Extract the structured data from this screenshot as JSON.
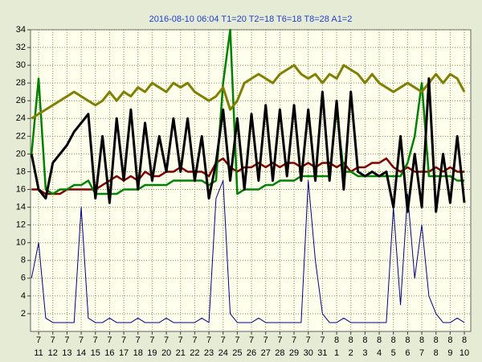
{
  "chart_data": {
    "type": "line",
    "title": "2016-08-10 06:04  T1=20 T2=18 T6=18 T8=28 A1=2",
    "x": [
      -0.5,
      0,
      0.5,
      1,
      1.5,
      2,
      2.5,
      3,
      3.5,
      4,
      4.5,
      5,
      5.5,
      6,
      6.5,
      7,
      7.5,
      8,
      8.5,
      9,
      9.5,
      10,
      10.5,
      11,
      11.5,
      12,
      12.5,
      13,
      13.5,
      14,
      14.5,
      15,
      15.5,
      16,
      16.5,
      17,
      17.5,
      18,
      18.5,
      19,
      19.5,
      20,
      20.5,
      21,
      21.5,
      22,
      22.5,
      23,
      23.5,
      24,
      24.5,
      25,
      25.5,
      26,
      26.5,
      27,
      27.5,
      28,
      28.5,
      29,
      29.5,
      30
    ],
    "xlim": [
      -0.57,
      30.45
    ],
    "xticks": [
      {
        "value": 0,
        "label": [
          "7",
          "11"
        ]
      },
      {
        "value": 1,
        "label": [
          "7",
          "12"
        ]
      },
      {
        "value": 2,
        "label": [
          "7",
          "13"
        ]
      },
      {
        "value": 3,
        "label": [
          "7",
          "14"
        ]
      },
      {
        "value": 4,
        "label": [
          "7",
          "15"
        ]
      },
      {
        "value": 5,
        "label": [
          "7",
          "16"
        ]
      },
      {
        "value": 6,
        "label": [
          "7",
          "17"
        ]
      },
      {
        "value": 7,
        "label": [
          "7",
          "18"
        ]
      },
      {
        "value": 8,
        "label": [
          "7",
          "19"
        ]
      },
      {
        "value": 9,
        "label": [
          "7",
          "20"
        ]
      },
      {
        "value": 10,
        "label": [
          "7",
          "21"
        ]
      },
      {
        "value": 11,
        "label": [
          "7",
          "22"
        ]
      },
      {
        "value": 12,
        "label": [
          "7",
          "23"
        ]
      },
      {
        "value": 13,
        "label": [
          "7",
          "24"
        ]
      },
      {
        "value": 14,
        "label": [
          "7",
          "25"
        ]
      },
      {
        "value": 15,
        "label": [
          "7",
          "26"
        ]
      },
      {
        "value": 16,
        "label": [
          "7",
          "27"
        ]
      },
      {
        "value": 17,
        "label": [
          "7",
          "28"
        ]
      },
      {
        "value": 18,
        "label": [
          "7",
          "29"
        ]
      },
      {
        "value": 19,
        "label": [
          "7",
          "30"
        ]
      },
      {
        "value": 20,
        "label": [
          "7",
          "31"
        ]
      },
      {
        "value": 21,
        "label": [
          "8",
          "1"
        ]
      },
      {
        "value": 22,
        "label": [
          "8",
          "2"
        ]
      },
      {
        "value": 23,
        "label": [
          "8",
          "3"
        ]
      },
      {
        "value": 24,
        "label": [
          "8",
          "4"
        ]
      },
      {
        "value": 25,
        "label": [
          "8",
          "5"
        ]
      },
      {
        "value": 26,
        "label": [
          "8",
          "6"
        ]
      },
      {
        "value": 27,
        "label": [
          "8",
          "7"
        ]
      },
      {
        "value": 28,
        "label": [
          "8",
          "8"
        ]
      },
      {
        "value": 29,
        "label": [
          "8",
          "9"
        ]
      },
      {
        "value": 30,
        "label": [
          "8",
          "10"
        ]
      }
    ],
    "ylim": [
      0,
      34
    ],
    "yticks": [
      2,
      4,
      6,
      8,
      10,
      12,
      14,
      16,
      18,
      20,
      22,
      24,
      26,
      28,
      30,
      32,
      34
    ],
    "grid": true,
    "series": [
      {
        "color": "#000080",
        "width": 1,
        "values": [
          6,
          10,
          1.5,
          1,
          1,
          1,
          1,
          14,
          1.5,
          1,
          1,
          1.5,
          1,
          1,
          1,
          1.5,
          1,
          1,
          1,
          1.5,
          1,
          1,
          1,
          1,
          1.5,
          1,
          15,
          17,
          2,
          1,
          1,
          1,
          1.5,
          1,
          1,
          1,
          1,
          1,
          1,
          17,
          8,
          2,
          1,
          1,
          1.5,
          1,
          1,
          1,
          1,
          1,
          1,
          14,
          3,
          15.5,
          6,
          12,
          4,
          2,
          1,
          1,
          1.5,
          1
        ]
      },
      {
        "color": "#800000",
        "width": 2.5,
        "values": [
          16,
          16,
          15.5,
          15.5,
          15.5,
          16,
          16,
          16,
          16,
          16,
          16.5,
          17,
          17.5,
          17,
          17.5,
          17,
          18,
          17.5,
          17.5,
          18,
          18,
          18.5,
          18,
          18,
          18,
          17.5,
          19,
          19.5,
          18.5,
          18,
          18.5,
          18.5,
          19,
          18.5,
          19,
          18.5,
          19,
          19,
          18.5,
          19,
          18.5,
          19,
          19,
          18.5,
          19,
          18,
          18.5,
          18.5,
          19,
          19,
          19.5,
          18.5,
          18,
          18.5,
          18,
          18,
          18,
          18.5,
          18,
          18.5,
          18,
          18
        ]
      },
      {
        "color": "#008000",
        "width": 2.5,
        "values": [
          20,
          28.5,
          16,
          15.5,
          16,
          16,
          16.5,
          16.5,
          17,
          15.5,
          15.5,
          15.5,
          15.5,
          16,
          16,
          16,
          16.5,
          16.5,
          16.5,
          16.5,
          17,
          17,
          17,
          17,
          17,
          16.5,
          17,
          28,
          34,
          15.5,
          16,
          16,
          16,
          16.5,
          16.5,
          17,
          17,
          17,
          17.5,
          17.5,
          17.5,
          17.5,
          17.5,
          25,
          18,
          18,
          17.5,
          17.5,
          17.5,
          17.5,
          17.5,
          17.5,
          17.5,
          19,
          22,
          28,
          17.5,
          17.5,
          17.5,
          17.5,
          17,
          17
        ]
      },
      {
        "color": "#808000",
        "width": 3,
        "values": [
          24,
          24.5,
          25,
          25.5,
          26,
          26.5,
          27,
          26.5,
          26,
          25.5,
          26,
          27,
          26,
          27,
          26.5,
          27.5,
          27,
          28,
          27.5,
          27,
          28,
          27.5,
          28,
          27,
          26.5,
          26,
          26.5,
          27.5,
          25,
          26,
          28,
          28.5,
          29,
          28.5,
          28,
          29,
          29.5,
          30,
          29,
          28.5,
          29,
          28,
          29,
          28.5,
          30,
          29.5,
          29,
          28,
          29,
          28,
          27.5,
          27,
          27.5,
          28,
          27.5,
          27,
          28,
          29,
          28,
          29,
          28.5,
          27
        ]
      },
      {
        "color": "#000000",
        "width": 3,
        "values": [
          20,
          16,
          15,
          19,
          20,
          21,
          22.5,
          23.5,
          24.5,
          15,
          22,
          14.5,
          24,
          17,
          25,
          16,
          23.5,
          17,
          22,
          18,
          24,
          18,
          24,
          17,
          22,
          15,
          19,
          25,
          17,
          24,
          16,
          24.5,
          17,
          25.5,
          17,
          25,
          17.5,
          25.5,
          17,
          25,
          17,
          27,
          17,
          26,
          16,
          27,
          18,
          17.5,
          18,
          17.5,
          18,
          14,
          22,
          13.5,
          20,
          14,
          28.5,
          13.5,
          20,
          14.5,
          22,
          14.5
        ]
      }
    ]
  }
}
